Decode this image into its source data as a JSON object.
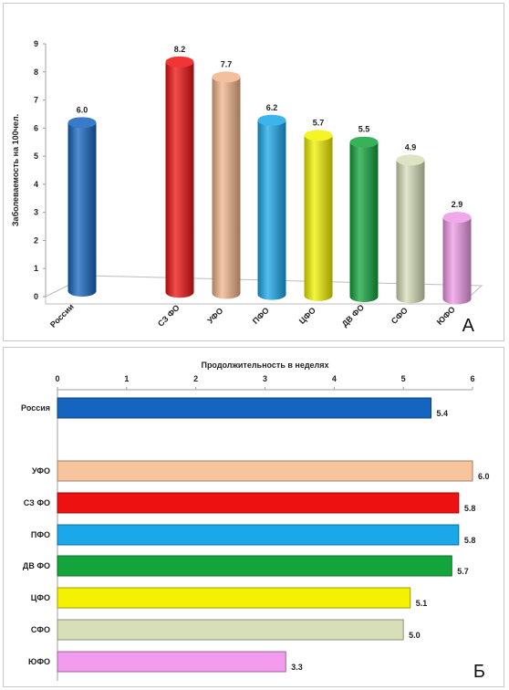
{
  "chart_data": [
    {
      "type": "bar",
      "orientation": "vertical",
      "panel_label": "А",
      "categories": [
        "России",
        "СЗ ФО",
        "УФО",
        "ПФО",
        "ЦФО",
        "ДВ ФО",
        "СФО",
        "ЮФО"
      ],
      "values": [
        6.0,
        8.2,
        7.7,
        6.2,
        5.7,
        5.5,
        4.9,
        2.9
      ],
      "value_labels": [
        "6.0",
        "8.2",
        "7.7",
        "6.2",
        "5.7",
        "5.5",
        "4.9",
        "2.9"
      ],
      "colors": [
        "#1565c0",
        "#ee1111",
        "#f2b48a",
        "#1aa8ea",
        "#f2f200",
        "#13a43c",
        "#d7dfb9",
        "#ef99e6"
      ],
      "ylabel": "Заболеваемость на 100чел.",
      "xlabel": "",
      "ylim": [
        0,
        9
      ],
      "yticks": [
        "0",
        "1",
        "2",
        "3",
        "4",
        "5",
        "6",
        "7",
        "8",
        "9"
      ],
      "style": "3d-cylinder",
      "grid": false
    },
    {
      "type": "bar",
      "orientation": "horizontal",
      "panel_label": "Б",
      "title": "Продолжительность в неделях",
      "categories": [
        "Россия",
        "УФО",
        "СЗ ФО",
        "ПФО",
        "ДВ ФО",
        "ЦФО",
        "СФО",
        "ЮФО"
      ],
      "values": [
        5.4,
        6.0,
        5.8,
        5.8,
        5.7,
        5.1,
        5.0,
        3.3
      ],
      "value_labels": [
        "5.4",
        "6.0",
        "5.8",
        "5.8",
        "5.7",
        "5.1",
        "5.0",
        "3.3"
      ],
      "colors": [
        "#1565c0",
        "#f7c49e",
        "#ee1111",
        "#1aa8ea",
        "#13a43c",
        "#f5f200",
        "#d7dfb9",
        "#f39ced"
      ],
      "xlim": [
        0,
        6
      ],
      "xticks": [
        "0",
        "1",
        "2",
        "3",
        "4",
        "5",
        "6"
      ],
      "axis_position": "top",
      "grid": false
    }
  ]
}
